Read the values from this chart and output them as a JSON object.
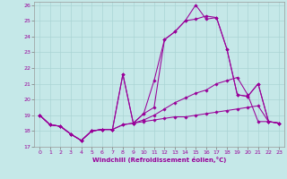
{
  "xlabel": "Windchill (Refroidissement éolien,°C)",
  "background_color": "#c5e8e8",
  "line_color": "#990099",
  "grid_color": "#aad4d4",
  "xlim": [
    -0.5,
    23.5
  ],
  "ylim": [
    17,
    26.2
  ],
  "xticks": [
    0,
    1,
    2,
    3,
    4,
    5,
    6,
    7,
    8,
    9,
    10,
    11,
    12,
    13,
    14,
    15,
    16,
    17,
    18,
    19,
    20,
    21,
    22,
    23
  ],
  "yticks": [
    17,
    18,
    19,
    20,
    21,
    22,
    23,
    24,
    25,
    26
  ],
  "line1_x": [
    0,
    1,
    2,
    3,
    4,
    5,
    6,
    7,
    8,
    9,
    10,
    11,
    12,
    13,
    14,
    15,
    16,
    17,
    18,
    19,
    20,
    21,
    22,
    23
  ],
  "line1_y": [
    19.0,
    18.4,
    18.3,
    17.8,
    17.4,
    18.0,
    18.1,
    18.1,
    18.4,
    18.5,
    18.6,
    18.7,
    18.8,
    18.9,
    18.9,
    19.0,
    19.1,
    19.2,
    19.3,
    19.4,
    19.5,
    19.6,
    18.6,
    18.5
  ],
  "line2_x": [
    0,
    1,
    2,
    3,
    4,
    5,
    6,
    7,
    8,
    9,
    10,
    11,
    12,
    13,
    14,
    15,
    16,
    17,
    18,
    19,
    20,
    21,
    22,
    23
  ],
  "line2_y": [
    19.0,
    18.4,
    18.3,
    17.8,
    17.4,
    18.0,
    18.1,
    18.1,
    18.4,
    18.5,
    18.7,
    19.0,
    19.4,
    19.8,
    20.1,
    20.4,
    20.6,
    21.0,
    21.2,
    21.4,
    20.3,
    18.6,
    18.6,
    18.5
  ],
  "line3_x": [
    0,
    1,
    2,
    3,
    4,
    5,
    6,
    7,
    8,
    9,
    10,
    11,
    12,
    13,
    14,
    15,
    16,
    17,
    18,
    19,
    20,
    21,
    22,
    23
  ],
  "line3_y": [
    19.0,
    18.4,
    18.3,
    17.8,
    17.4,
    18.0,
    18.1,
    18.1,
    21.6,
    18.5,
    19.1,
    19.5,
    23.8,
    24.3,
    25.0,
    25.1,
    25.3,
    25.2,
    23.2,
    20.3,
    20.2,
    21.0,
    18.6,
    18.5
  ],
  "line4_x": [
    0,
    1,
    2,
    3,
    4,
    5,
    6,
    7,
    8,
    9,
    10,
    11,
    12,
    13,
    14,
    15,
    16,
    17,
    18,
    19,
    20,
    21,
    22,
    23
  ],
  "line4_y": [
    19.0,
    18.4,
    18.3,
    17.8,
    17.4,
    18.0,
    18.1,
    18.1,
    21.6,
    18.5,
    19.1,
    21.2,
    23.8,
    24.3,
    25.0,
    26.0,
    25.1,
    25.2,
    23.2,
    20.3,
    20.2,
    21.0,
    18.6,
    18.5
  ]
}
